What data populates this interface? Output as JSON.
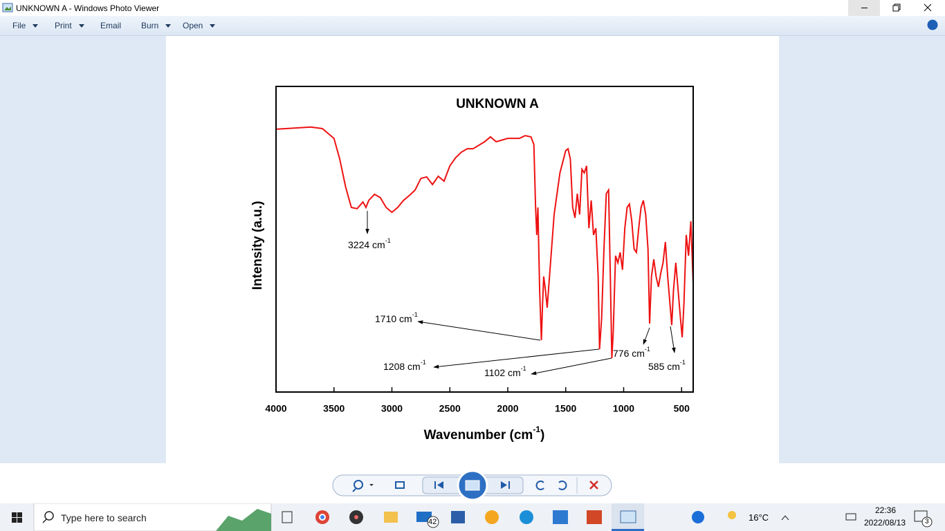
{
  "window": {
    "title": "UNKNOWN A - Windows Photo Viewer"
  },
  "menu": [
    "File",
    "Print",
    "Email",
    "Burn",
    "Open"
  ],
  "chart": {
    "type": "line",
    "title": "UNKNOWN A",
    "ylabel": "Intensity (a.u.)",
    "xlabel": {
      "text": "Wavenumber (cm",
      "sup": "-1",
      "end": ")"
    },
    "xlim": [
      4000,
      400
    ],
    "ylim": [
      0,
      100
    ],
    "xticks": [
      4000,
      3500,
      3000,
      2500,
      2000,
      1500,
      1000,
      500
    ],
    "color": "#ee1111",
    "x": [
      4000,
      3700,
      3600,
      3500,
      3450,
      3400,
      3350,
      3300,
      3250,
      3224,
      3200,
      3150,
      3100,
      3050,
      3000,
      2950,
      2900,
      2850,
      2800,
      2750,
      2700,
      2650,
      2600,
      2550,
      2500,
      2450,
      2400,
      2350,
      2300,
      2200,
      2150,
      2100,
      2000,
      1900,
      1850,
      1800,
      1775,
      1760,
      1750,
      1740,
      1725,
      1710,
      1700,
      1690,
      1675,
      1660,
      1640,
      1600,
      1550,
      1500,
      1480,
      1460,
      1440,
      1420,
      1400,
      1380,
      1360,
      1340,
      1320,
      1300,
      1280,
      1260,
      1240,
      1220,
      1208,
      1190,
      1170,
      1150,
      1130,
      1115,
      1102,
      1090,
      1070,
      1050,
      1030,
      1010,
      990,
      970,
      950,
      930,
      910,
      890,
      870,
      850,
      830,
      810,
      790,
      776,
      760,
      740,
      720,
      700,
      680,
      660,
      640,
      620,
      600,
      585,
      570,
      550,
      530,
      510,
      495,
      480,
      460,
      440,
      420,
      400
    ],
    "values": [
      86.0,
      86.7,
      86.2,
      83.0,
      76.2,
      67.2,
      60.4,
      60.0,
      62.2,
      60.4,
      62.7,
      64.7,
      63.6,
      60.4,
      58.8,
      60.4,
      62.7,
      64.3,
      66.1,
      69.9,
      70.4,
      67.9,
      70.6,
      69.0,
      74.0,
      76.7,
      78.5,
      79.6,
      79.6,
      81.9,
      83.5,
      81.9,
      83.0,
      83.0,
      83.9,
      83.5,
      81.0,
      60.4,
      51.4,
      60.4,
      33.3,
      17.0,
      28.7,
      37.8,
      33.3,
      27.6,
      37.8,
      58.1,
      71.7,
      79.0,
      79.6,
      76.2,
      60.4,
      57.0,
      64.9,
      58.1,
      72.9,
      71.7,
      74.0,
      53.6,
      62.7,
      51.4,
      53.6,
      37.8,
      14.0,
      24.2,
      46.8,
      64.9,
      66.1,
      37.8,
      11.1,
      19.7,
      44.6,
      42.3,
      45.7,
      40.0,
      53.6,
      60.4,
      61.5,
      55.9,
      46.8,
      45.7,
      53.6,
      60.4,
      62.7,
      58.1,
      46.8,
      22.4,
      37.8,
      43.4,
      37.8,
      34.4,
      38.9,
      42.3,
      49.1,
      37.8,
      28.7,
      21.9,
      33.3,
      42.3,
      33.3,
      24.2,
      17.9,
      28.7,
      51.4,
      44.6,
      55.9,
      35.5
    ],
    "annotations": [
      {
        "text": "3224 cm",
        "sup": "-1"
      },
      {
        "text": "1710 cm",
        "sup": "-1"
      },
      {
        "text": "1208 cm",
        "sup": "-1"
      },
      {
        "text": "1102 cm",
        "sup": "-1"
      },
      {
        "text": "776 cm",
        "sup": "-1"
      },
      {
        "text": "585 cm",
        "sup": "-1"
      }
    ]
  },
  "taskbar": {
    "search": "Type here to search",
    "mail_badge": "42",
    "weather": "16°C",
    "time": "22:36",
    "date": "2022/08/13",
    "notifications": "3"
  }
}
